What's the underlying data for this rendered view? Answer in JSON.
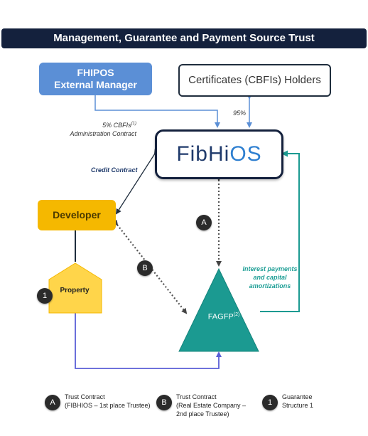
{
  "title": "Management, Guarantee and Payment Source Trust",
  "nodes": {
    "manager": {
      "line1": "FHIPOS",
      "line2": "External Manager"
    },
    "holders": {
      "label": "Certificates (CBFIs) Holders"
    },
    "fibhios": {
      "part1": "FibHi",
      "part2": "OS"
    },
    "developer": {
      "label": "Developer"
    },
    "property": {
      "label": "Property"
    },
    "fagfp": {
      "label": "FAGFP",
      "sup": "(2)"
    }
  },
  "edges": {
    "admin": {
      "line1": "5% CBFIs",
      "sup": "(1)",
      "line2": "Administration Contract"
    },
    "holders_share": "95%",
    "credit": "Credit Contract",
    "interest": "Interest payments and capital amortizations"
  },
  "badges": {
    "a": "A",
    "b": "B",
    "one": "1"
  },
  "legend": [
    {
      "badge": "A",
      "line1": "Trust Contract",
      "line2": "(FIBHIOS – 1st place Trustee)",
      "line3": ""
    },
    {
      "badge": "B",
      "line1": "Trust Contract",
      "line2": "(Real Estate Company –",
      "line3": "2nd place Trustee)"
    },
    {
      "badge": "1",
      "line1": "Guarantee",
      "line2": "Structure 1",
      "line3": ""
    }
  ],
  "colors": {
    "navy": "#14213d",
    "blue": "#5b8fd6",
    "yellow": "#f5b800",
    "yellow_light": "#ffd54a",
    "teal": "#1b9a91",
    "purple_line": "#5a5fd6"
  }
}
